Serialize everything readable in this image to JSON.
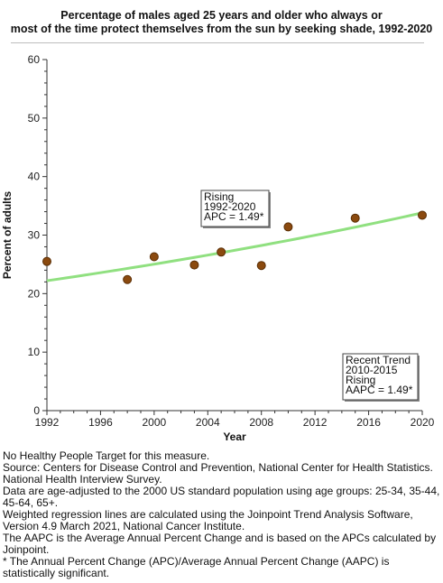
{
  "chart_data": {
    "type": "scatter",
    "title_line1": "Percentage of males aged 25 years and older who always or",
    "title_line2": "most of the time protect themselves from the sun by seeking shade, 1992-2020",
    "xlabel": "Year",
    "ylabel": "Percent of adults",
    "xlim": [
      1992,
      2020
    ],
    "ylim": [
      0,
      60
    ],
    "xticks": [
      1992,
      1996,
      2000,
      2004,
      2008,
      2012,
      2016,
      2020
    ],
    "yticks": [
      0,
      10,
      20,
      30,
      40,
      50,
      60
    ],
    "grid": false,
    "points": [
      {
        "x": 1992,
        "y": 25.5
      },
      {
        "x": 1998,
        "y": 22.4
      },
      {
        "x": 2000,
        "y": 26.3
      },
      {
        "x": 2003,
        "y": 24.9
      },
      {
        "x": 2005,
        "y": 27.1
      },
      {
        "x": 2008,
        "y": 24.8
      },
      {
        "x": 2010,
        "y": 31.4
      },
      {
        "x": 2015,
        "y": 32.9
      },
      {
        "x": 2020,
        "y": 33.4
      }
    ],
    "regression": {
      "x_start": 1992,
      "y_start": 22.2,
      "x_end": 2020,
      "y_end": 33.8,
      "apc": 1.49
    },
    "colors": {
      "point_fill": "#8b4a0f",
      "point_stroke": "#5a2e05",
      "trend_line": "#90e080",
      "axis": "#333333"
    },
    "annotations": {
      "trend_box": [
        "Rising",
        "1992-2020",
        "APC =  1.49*"
      ],
      "recent_box": [
        "Recent Trend",
        "2010-2015",
        "Rising",
        "AAPC =  1.49*"
      ]
    }
  },
  "notes": [
    "No Healthy People Target for this measure.",
    "Source: Centers for Disease Control and Prevention, National Center for Health Statistics. National Health Interview Survey.",
    "Data are age-adjusted to the 2000 US standard population using age groups: 25-34, 35-44, 45-64, 65+.",
    "Weighted regression lines are calculated using the Joinpoint Trend Analysis Software, Version 4.9 March 2021, National Cancer Institute.",
    "The AAPC is the Average Annual Percent Change and is based on the APCs calculated by Joinpoint.",
    "* The Annual Percent Change (APC)/Average Annual Percent Change (AAPC) is statistically significant."
  ]
}
